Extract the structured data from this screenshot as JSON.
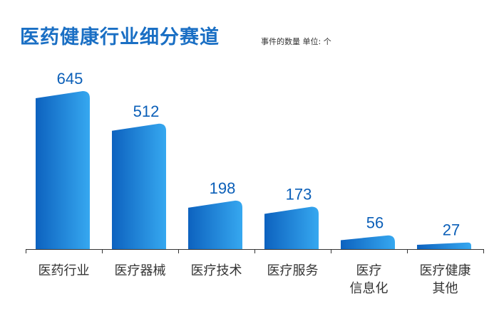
{
  "title": "医药健康行业细分赛道",
  "subtitle": "事件的数量 单位: 个",
  "colors": {
    "title": "#1a6fc4",
    "bar_light": "#36a8f0",
    "bar_dark": "#0d62bf",
    "value_label": "#0b5fb8",
    "axis": "#333333",
    "category_label": "#333333"
  },
  "chart_data": {
    "type": "bar",
    "title": "医药健康行业细分赛道",
    "subtitle": "事件的数量 单位: 个",
    "categories": [
      [
        "医药行业"
      ],
      [
        "医疗器械"
      ],
      [
        "医疗技术"
      ],
      [
        "医疗服务"
      ],
      [
        "医疗",
        "信息化"
      ],
      [
        "医疗健康",
        "其他"
      ]
    ],
    "values": [
      645,
      512,
      198,
      173,
      56,
      27
    ],
    "ylim": [
      0,
      645
    ],
    "grid": false,
    "data_labels": true
  }
}
